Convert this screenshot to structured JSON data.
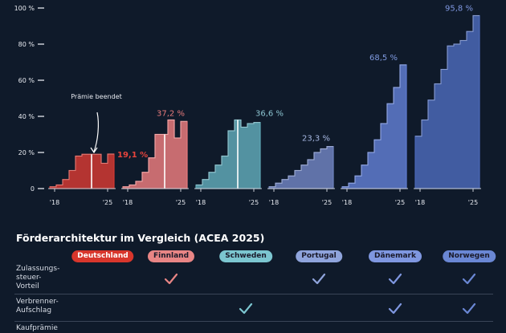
{
  "chart_data": {
    "type": "bar",
    "y_axis": {
      "ticks": [
        0,
        20,
        40,
        60,
        80,
        100
      ],
      "tick_labels": [
        "0",
        "20 %",
        "40 %",
        "60 %",
        "80 %",
        "100 %"
      ],
      "ylim": [
        0,
        100
      ]
    },
    "x_tick_labels": [
      "'18",
      "'25"
    ],
    "series": [
      {
        "name": "Deutschland",
        "color": "#d13a32",
        "values": [
          1,
          2,
          5,
          10,
          18,
          19,
          19,
          19,
          14,
          19.1
        ],
        "end_label": "19,1 %",
        "marker_index": 7,
        "annotation": "Prämie beendet"
      },
      {
        "name": "Finnland",
        "color": "#e87b7c",
        "values": [
          1,
          2,
          4,
          9,
          17,
          30,
          30,
          38,
          28,
          37.2
        ],
        "end_label": "37,2 %",
        "marker_index": 7
      },
      {
        "name": "Schweden",
        "color": "#5fa8b6",
        "values": [
          2,
          5,
          9,
          13,
          18,
          32,
          38,
          34,
          36,
          36.6
        ],
        "end_label": "36,6 %",
        "marker_index": 7
      },
      {
        "name": "Portugal",
        "color": "#6f83be",
        "values": [
          1,
          3,
          5,
          7,
          10,
          13,
          16,
          20,
          22,
          23.3
        ],
        "end_label": "23,3 %",
        "marker_index": null
      },
      {
        "name": "Dänemark",
        "color": "#5f7ccf",
        "values": [
          1,
          3,
          7,
          13,
          20,
          27,
          36,
          47,
          56,
          68.5
        ],
        "end_label": "68,5 %",
        "marker_index": null
      },
      {
        "name": "Norwegen",
        "color": "#4a68b6",
        "values": [
          29,
          38,
          49,
          58,
          66,
          79,
          80,
          82,
          87,
          95.8
        ],
        "end_label": "95,8 %",
        "marker_index": null
      }
    ]
  },
  "table": {
    "title": "Förderarchitektur im Vergleich (ACEA 2025)",
    "countries": [
      {
        "name": "Deutschland",
        "bg": "#d8362c",
        "fg": "#ffffff"
      },
      {
        "name": "Finnland",
        "bg": "#e88585",
        "fg": "#1a1a2a"
      },
      {
        "name": "Schweden",
        "bg": "#7cc6d0",
        "fg": "#1a1a2a"
      },
      {
        "name": "Portugal",
        "bg": "#8fa4dc",
        "fg": "#1a1a2a"
      },
      {
        "name": "Dänemark",
        "bg": "#7f97e0",
        "fg": "#1a1a2a"
      },
      {
        "name": "Norwegen",
        "bg": "#6a87d4",
        "fg": "#1a1a2a"
      }
    ],
    "rows": [
      {
        "label_lines": [
          "Zulassungs-",
          "steuer-",
          "Vorteil"
        ],
        "checks": [
          false,
          true,
          false,
          true,
          true,
          true
        ]
      },
      {
        "label_lines": [
          "Verbrenner-",
          "Aufschlag"
        ],
        "checks": [
          false,
          false,
          true,
          false,
          true,
          true
        ]
      },
      {
        "label_lines": [
          "Kaufprämie"
        ],
        "checks": [
          false,
          false,
          false,
          false,
          false,
          false
        ]
      }
    ],
    "check_glyph": "✓",
    "check_colors": [
      "#d8362c",
      "#e88585",
      "#7cc6d0",
      "#8fa4dc",
      "#7f97e0",
      "#6a87d4"
    ]
  }
}
